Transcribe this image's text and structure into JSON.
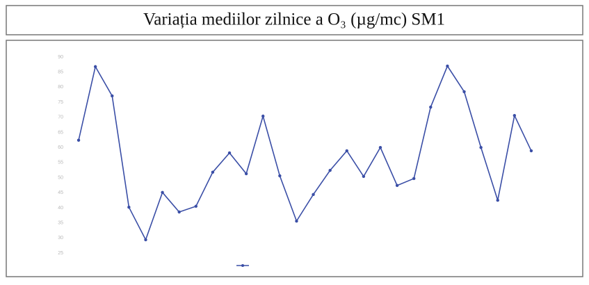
{
  "chart_data": {
    "type": "line",
    "title": "Variația mediilor zilnice a O₃ (µg/mc) SM1",
    "categories": [
      null,
      null,
      null,
      null,
      null,
      null,
      null,
      null,
      null,
      null,
      null,
      null,
      null,
      null,
      null,
      null,
      null,
      null,
      null,
      null,
      null,
      null,
      null,
      null,
      null,
      null,
      null,
      null
    ],
    "values": [
      62.4,
      86.8,
      77.1,
      40.2,
      29.4,
      45.1,
      38.6,
      40.5,
      51.8,
      58.2,
      51.3,
      70.4,
      50.6,
      35.6,
      44.4,
      52.4,
      58.9,
      50.4,
      60.0,
      47.4,
      49.7,
      73.4,
      87.0,
      78.5,
      60.0,
      42.5,
      70.6,
      58.9
    ],
    "color": "#3a4ea6",
    "ylim": [
      25,
      90
    ],
    "yticks": [
      25,
      30,
      35,
      40,
      45,
      50,
      55,
      60,
      65,
      70,
      75,
      80,
      85,
      90
    ],
    "grid": false
  }
}
